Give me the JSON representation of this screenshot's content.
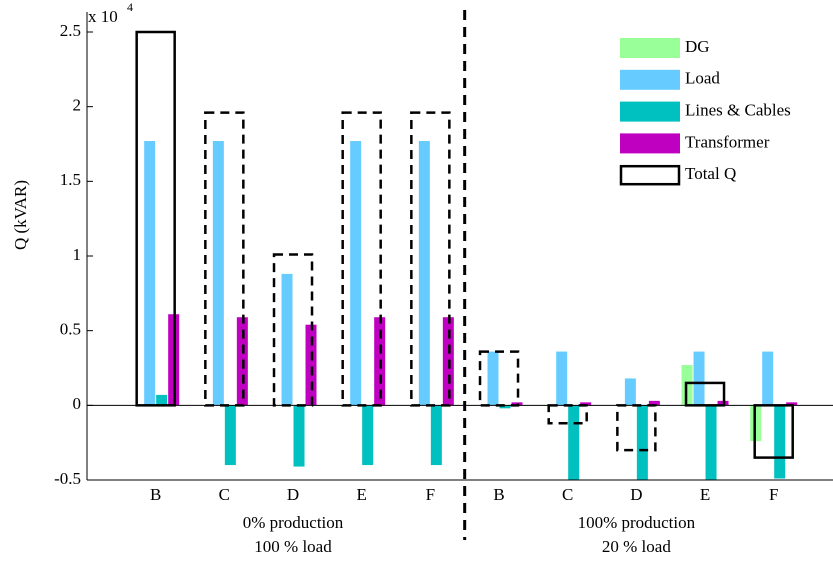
{
  "chart_data": {
    "type": "grouped_bar",
    "y_label": "Q (kVAR)",
    "y_scale_label": "x 10",
    "y_scale_exponent": "4",
    "categories": [
      "B",
      "C",
      "D",
      "E",
      "F",
      "B",
      "C",
      "D",
      "E",
      "F"
    ],
    "group_labels": [
      [
        "0% production",
        "100 % load"
      ],
      [
        "100% production",
        "20 % load"
      ]
    ],
    "series": [
      {
        "name": "DG",
        "color": "#99ff99",
        "values": [
          0,
          0,
          0,
          0,
          0,
          0,
          0,
          0,
          0.27,
          -0.24
        ]
      },
      {
        "name": "Load",
        "color": "#66ccff",
        "values": [
          1.77,
          1.77,
          0.88,
          1.77,
          1.77,
          0.36,
          0.36,
          0.18,
          0.36,
          0.36
        ]
      },
      {
        "name": "Lines & Cables",
        "color": "#00c0c0",
        "values": [
          0.07,
          -0.4,
          -0.41,
          -0.4,
          -0.4,
          -0.02,
          -0.5,
          -0.51,
          -0.51,
          -0.49
        ]
      },
      {
        "name": "Transformer",
        "color": "#c000c0",
        "values": [
          0.61,
          0.59,
          0.54,
          0.59,
          0.59,
          0.02,
          0.02,
          0.03,
          0.03,
          0.02
        ]
      },
      {
        "name": "Total Q",
        "color": "#000000",
        "style": "outline",
        "line_styles": [
          "solid",
          "dashed",
          "dashed",
          "dashed",
          "dashed",
          "dashed",
          "dashed",
          "dashed",
          "solid",
          "solid"
        ],
        "values": [
          2.5,
          1.96,
          1.01,
          1.96,
          1.96,
          0.36,
          -0.12,
          -0.3,
          0.15,
          -0.35
        ]
      }
    ],
    "ylim": [
      -0.5,
      2.5
    ],
    "yticks": [
      -0.5,
      0,
      0.5,
      1,
      1.5,
      2,
      2.5
    ]
  }
}
